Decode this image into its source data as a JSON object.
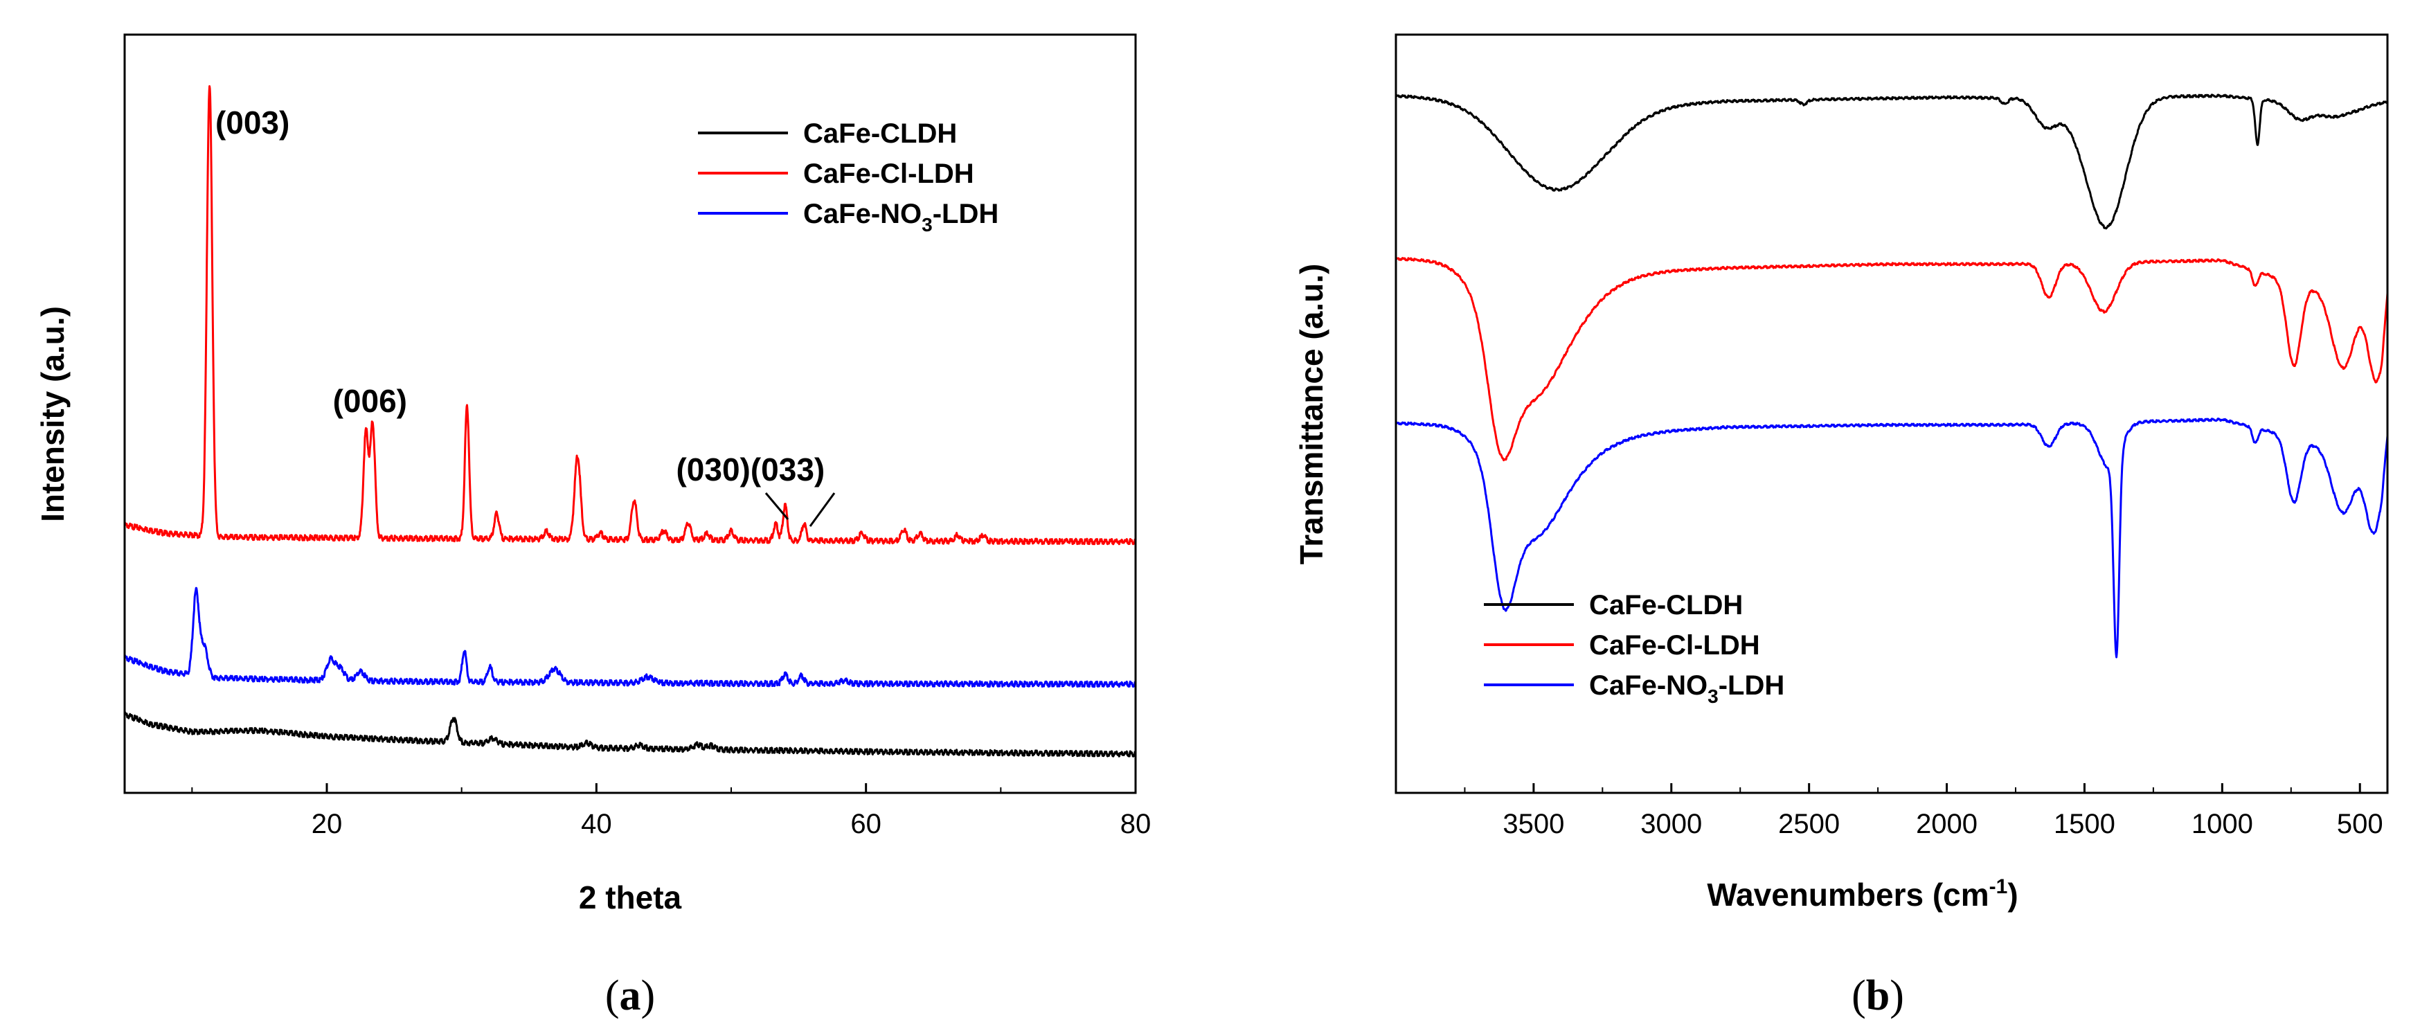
{
  "chart_data": [
    {
      "type": "line",
      "panel": "a",
      "panel_label": "(a)",
      "xlabel": "2 theta",
      "ylabel": "Intensity (a.u.)",
      "xlim": [
        5,
        80
      ],
      "ylim": [
        0,
        100
      ],
      "xticks": [
        20,
        40,
        60,
        80
      ],
      "y_ticklabels_shown": false,
      "legend_position": "top-right",
      "series": [
        {
          "name": "CaFe-CLDH",
          "color": "#000000",
          "baseline": 5.5,
          "background": [
            [
              5,
              10.5
            ],
            [
              7,
              9.2
            ],
            [
              10,
              8.2
            ],
            [
              15,
              8.4
            ],
            [
              20,
              7.6
            ],
            [
              30,
              6.8
            ],
            [
              40,
              6.1
            ],
            [
              60,
              5.6
            ],
            [
              80,
              5.3
            ]
          ],
          "peaks": [
            [
              29.4,
              3.2,
              0.25
            ],
            [
              32.3,
              0.7,
              0.3
            ],
            [
              39.3,
              0.6,
              0.3
            ],
            [
              43.2,
              0.5,
              0.3
            ],
            [
              47.5,
              0.6,
              0.3
            ],
            [
              48.5,
              0.5,
              0.3
            ]
          ]
        },
        {
          "name": "CaFe-Cl-LDH",
          "color": "#ff0000",
          "baseline": 33.5,
          "background": [
            [
              5,
              35.5
            ],
            [
              8,
              34.4
            ],
            [
              12,
              33.9
            ],
            [
              20,
              33.8
            ],
            [
              40,
              33.6
            ],
            [
              60,
              33.4
            ],
            [
              80,
              33.3
            ]
          ],
          "peaks": [
            [
              11.3,
              59.5,
              0.2
            ],
            [
              22.9,
              14.0,
              0.18
            ],
            [
              23.4,
              15.0,
              0.18
            ],
            [
              30.4,
              17.5,
              0.16
            ],
            [
              32.6,
              3.3,
              0.18
            ],
            [
              38.6,
              11.0,
              0.22
            ],
            [
              36.3,
              1.0,
              0.2
            ],
            [
              40.3,
              0.8,
              0.2
            ],
            [
              42.8,
              5.2,
              0.2
            ],
            [
              45.0,
              1.2,
              0.2
            ],
            [
              46.8,
              2.2,
              0.2
            ],
            [
              48.2,
              0.8,
              0.2
            ],
            [
              50.0,
              1.2,
              0.2
            ],
            [
              53.3,
              2.2,
              0.16
            ],
            [
              54.0,
              4.6,
              0.16
            ],
            [
              55.4,
              2.2,
              0.16
            ],
            [
              59.7,
              1.0,
              0.2
            ],
            [
              62.8,
              1.5,
              0.2
            ],
            [
              64.0,
              1.0,
              0.2
            ],
            [
              66.8,
              0.8,
              0.2
            ],
            [
              68.7,
              0.8,
              0.2
            ]
          ]
        },
        {
          "name": "CaFe-NO3-LDH",
          "color": "#0000ff",
          "baseline": 14.5,
          "background": [
            [
              5,
              18.0
            ],
            [
              8,
              16.2
            ],
            [
              12,
              15.3
            ],
            [
              20,
              15.0
            ],
            [
              30,
              14.8
            ],
            [
              50,
              14.6
            ],
            [
              80,
              14.5
            ]
          ],
          "peaks": [
            [
              10.3,
              11.0,
              0.22
            ],
            [
              10.9,
              4.0,
              0.25
            ],
            [
              20.3,
              2.8,
              0.3
            ],
            [
              21.0,
              1.6,
              0.3
            ],
            [
              22.5,
              1.2,
              0.3
            ],
            [
              30.2,
              4.2,
              0.16
            ],
            [
              32.1,
              2.0,
              0.18
            ],
            [
              36.9,
              1.8,
              0.4
            ],
            [
              43.8,
              0.8,
              0.45
            ],
            [
              54.0,
              1.2,
              0.2
            ],
            [
              55.2,
              1.0,
              0.2
            ],
            [
              58.4,
              0.4,
              0.3
            ]
          ]
        }
      ],
      "annotations": [
        {
          "text": "(003)",
          "x": 11.3
        },
        {
          "text": "(006)",
          "x": 23.2
        },
        {
          "text": "(030)(033)",
          "x": 54.0
        }
      ],
      "annotation_leaders": [
        [
          54.0,
          55.4
        ]
      ]
    },
    {
      "type": "line",
      "panel": "b",
      "panel_label": "(b)",
      "xlabel_main": "Wavenumbers (cm",
      "xlabel_sup": "-1",
      "xlabel_end": ")",
      "ylabel": "Transmittance (a.u.)",
      "xlim": [
        4000,
        400
      ],
      "ylim": [
        0,
        100
      ],
      "xticks": [
        3500,
        3000,
        2500,
        2000,
        1500,
        1000,
        500
      ],
      "y_ticklabels_shown": false,
      "legend_position": "bottom-left",
      "series": [
        {
          "name": "CaFe-CLDH",
          "color": "#000000",
          "baseline": 91.8,
          "background": [
            [
              4000,
              92.0
            ],
            [
              3700,
              91.8
            ],
            [
              3200,
              90.6
            ],
            [
              2800,
              91.3
            ],
            [
              2000,
              91.8
            ],
            [
              1800,
              91.7
            ],
            [
              1000,
              92.0
            ],
            [
              700,
              91.0
            ],
            [
              500,
              90.5
            ],
            [
              400,
              91.2
            ]
          ],
          "bands": [
            [
              3420,
              11.5,
              170
            ],
            [
              1640,
              3.5,
              40
            ],
            [
              1540,
              1.5,
              60
            ],
            [
              1420,
              17.0,
              70
            ],
            [
              872,
              6.0,
              8
            ],
            [
              720,
              2.0,
              40
            ],
            [
              600,
              1.5,
              60
            ],
            [
              2520,
              0.6,
              12
            ],
            [
              1790,
              0.8,
              12
            ]
          ]
        },
        {
          "name": "CaFe-Cl-LDH",
          "color": "#ff0000",
          "baseline": 69.5,
          "background": [
            [
              4000,
              70.5
            ],
            [
              3700,
              70.3
            ],
            [
              3300,
              68.5
            ],
            [
              2800,
              69.3
            ],
            [
              2200,
              69.8
            ],
            [
              1800,
              69.8
            ],
            [
              1000,
              70.3
            ],
            [
              800,
              68.0
            ],
            [
              600,
              66.0
            ],
            [
              420,
              66.5
            ],
            [
              400,
              71.0
            ]
          ],
          "bands": [
            [
              3620,
              13.0,
              45
            ],
            [
              3530,
              14.5,
              120
            ],
            [
              3400,
              4.0,
              150
            ],
            [
              1630,
              4.5,
              25
            ],
            [
              1430,
              6.5,
              45
            ],
            [
              880,
              2.0,
              10
            ],
            [
              740,
              11.0,
              25
            ],
            [
              560,
              10.0,
              40
            ],
            [
              440,
              12.0,
              30
            ]
          ]
        },
        {
          "name": "CaFe-NO3-LDH",
          "color": "#0000ff",
          "baseline": 48.5,
          "background": [
            [
              4000,
              48.8
            ],
            [
              3700,
              48.6
            ],
            [
              3300,
              47.2
            ],
            [
              2800,
              48.3
            ],
            [
              2200,
              48.6
            ],
            [
              1800,
              48.6
            ],
            [
              1000,
              49.3
            ],
            [
              800,
              47.5
            ],
            [
              600,
              45.5
            ],
            [
              420,
              45.5
            ],
            [
              400,
              50.0
            ]
          ],
          "bands": [
            [
              3610,
              14.0,
              40
            ],
            [
              3520,
              12.0,
              110
            ],
            [
              3400,
              3.0,
              150
            ],
            [
              1630,
              3.0,
              25
            ],
            [
              1410,
              6.0,
              40
            ],
            [
              1384,
              26.0,
              10
            ],
            [
              880,
              2.0,
              10
            ],
            [
              740,
              8.5,
              25
            ],
            [
              560,
              8.5,
              40
            ],
            [
              450,
              11.0,
              30
            ]
          ]
        }
      ]
    }
  ]
}
